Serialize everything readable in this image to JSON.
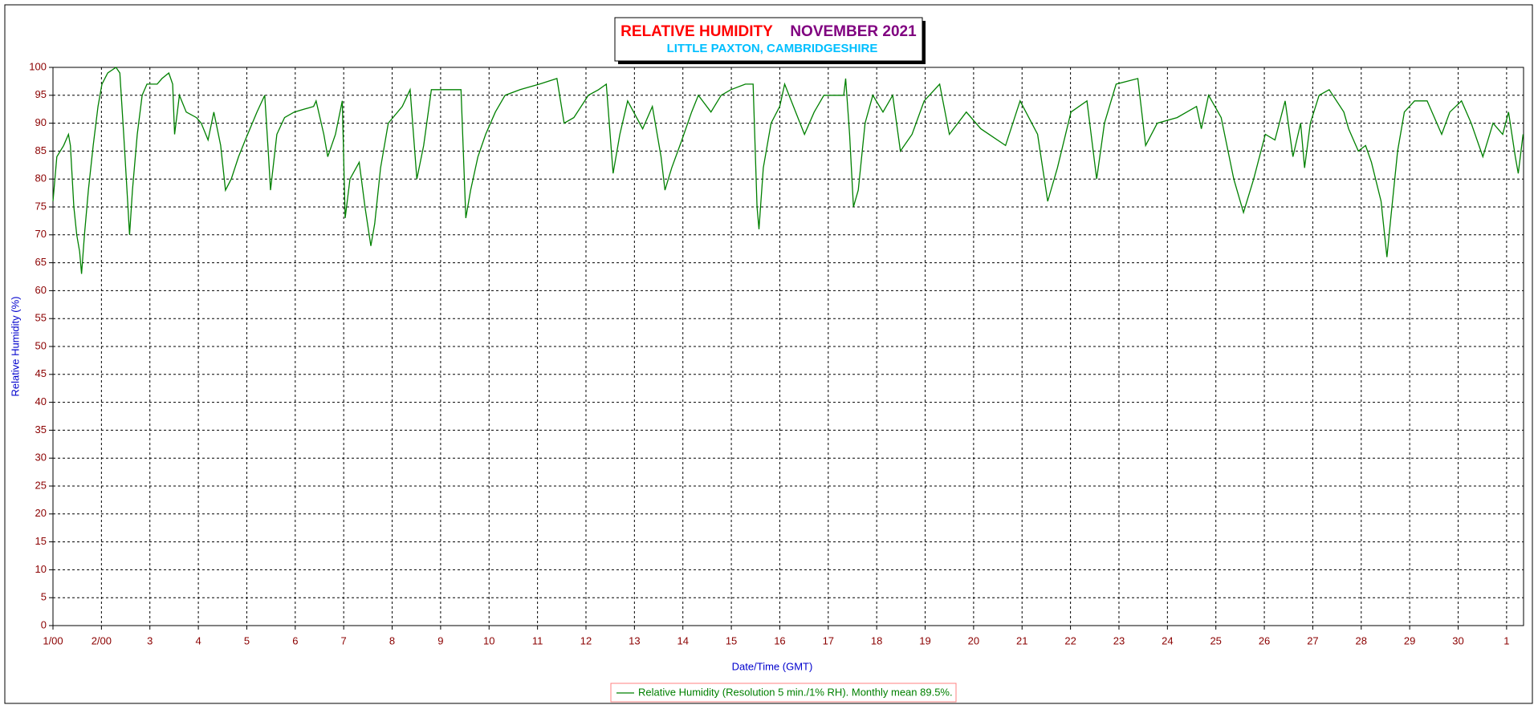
{
  "chart_data": {
    "type": "line",
    "title": "RELATIVE HUMIDITY",
    "title_period": "NOVEMBER 2021",
    "subtitle": "LITTLE PAXTON, CAMBRIDGESHIRE",
    "x_label": "Date/Time (GMT)",
    "y_label": "Relative Humidity (%)",
    "grid": true,
    "legend": "bottom",
    "xlim": [
      0,
      30.35
    ],
    "ylim": [
      0,
      100
    ],
    "xticks": [
      {
        "value": 0,
        "label": "1/00"
      },
      {
        "value": 1,
        "label": "2/00"
      },
      {
        "value": 2,
        "label": "3"
      },
      {
        "value": 3,
        "label": "4"
      },
      {
        "value": 4,
        "label": "5"
      },
      {
        "value": 5,
        "label": "6"
      },
      {
        "value": 6,
        "label": "7"
      },
      {
        "value": 7,
        "label": "8"
      },
      {
        "value": 8,
        "label": "9"
      },
      {
        "value": 9,
        "label": "10"
      },
      {
        "value": 10,
        "label": "11"
      },
      {
        "value": 11,
        "label": "12"
      },
      {
        "value": 12,
        "label": "13"
      },
      {
        "value": 13,
        "label": "14"
      },
      {
        "value": 14,
        "label": "15"
      },
      {
        "value": 15,
        "label": "16"
      },
      {
        "value": 16,
        "label": "17"
      },
      {
        "value": 17,
        "label": "18"
      },
      {
        "value": 18,
        "label": "19"
      },
      {
        "value": 19,
        "label": "20"
      },
      {
        "value": 20,
        "label": "21"
      },
      {
        "value": 21,
        "label": "22"
      },
      {
        "value": 22,
        "label": "23"
      },
      {
        "value": 23,
        "label": "24"
      },
      {
        "value": 24,
        "label": "25"
      },
      {
        "value": 25,
        "label": "26"
      },
      {
        "value": 26,
        "label": "27"
      },
      {
        "value": 27,
        "label": "28"
      },
      {
        "value": 28,
        "label": "29"
      },
      {
        "value": 29,
        "label": "30"
      },
      {
        "value": 30,
        "label": "1"
      }
    ],
    "yticks": [
      0,
      5,
      10,
      15,
      20,
      25,
      30,
      35,
      40,
      45,
      50,
      55,
      60,
      65,
      70,
      75,
      80,
      85,
      90,
      95,
      100
    ],
    "x": [
      0,
      0.08,
      0.22,
      0.32,
      0.36,
      0.43,
      0.49,
      0.55,
      0.59,
      0.65,
      0.73,
      0.83,
      0.93,
      1.01,
      1.13,
      1.3,
      1.38,
      1.46,
      1.54,
      1.58,
      1.64,
      1.74,
      1.84,
      1.94,
      2.15,
      2.25,
      2.39,
      2.47,
      2.51,
      2.61,
      2.75,
      2.96,
      3.06,
      3.2,
      3.32,
      3.46,
      3.56,
      3.68,
      3.83,
      3.97,
      4.21,
      4.37,
      4.45,
      4.49,
      4.62,
      4.78,
      4.98,
      5.38,
      5.43,
      5.59,
      5.67,
      5.83,
      5.97,
      6.03,
      6.13,
      6.32,
      6.44,
      6.56,
      6.64,
      6.76,
      6.92,
      7.21,
      7.37,
      7.51,
      7.65,
      7.81,
      8.42,
      8.52,
      8.62,
      8.77,
      8.93,
      9.13,
      9.33,
      9.64,
      10.04,
      10.4,
      10.55,
      10.75,
      11.05,
      11.26,
      11.42,
      11.56,
      11.7,
      11.86,
      12.17,
      12.37,
      12.55,
      12.63,
      12.77,
      12.98,
      13.18,
      13.32,
      13.58,
      13.79,
      13.99,
      14.29,
      14.45,
      14.53,
      14.57,
      14.66,
      14.82,
      15.0,
      15.1,
      15.51,
      15.71,
      15.91,
      16.32,
      16.36,
      16.44,
      16.52,
      16.62,
      16.76,
      16.92,
      17.13,
      17.33,
      17.49,
      17.73,
      17.98,
      18.3,
      18.5,
      18.85,
      19.15,
      19.66,
      19.96,
      20.32,
      20.53,
      20.73,
      21.01,
      21.34,
      21.54,
      21.7,
      21.94,
      22.39,
      22.55,
      22.79,
      23.2,
      23.6,
      23.7,
      23.85,
      24.11,
      24.37,
      24.57,
      24.78,
      25.02,
      25.22,
      25.43,
      25.59,
      25.75,
      25.83,
      25.95,
      26.13,
      26.34,
      26.64,
      26.74,
      26.94,
      27.09,
      27.21,
      27.41,
      27.53,
      27.61,
      27.75,
      27.89,
      28.1,
      28.36,
      28.56,
      28.66,
      28.83,
      29.07,
      29.27,
      29.51,
      29.72,
      29.92,
      30.04,
      30.18,
      30.24,
      30.34
    ],
    "series": [
      {
        "name": "Relative Humidity (Resolution 5 min./1% RH). Monthly mean 89.5%.",
        "color": "#008000",
        "values": [
          76,
          84,
          86,
          88,
          86,
          75,
          70,
          67,
          63,
          70,
          78,
          86,
          93,
          97,
          99,
          100,
          99,
          88,
          76,
          70,
          78,
          88,
          95,
          97,
          97,
          98,
          99,
          97,
          88,
          95,
          92,
          91,
          90,
          87,
          92,
          86,
          78,
          80,
          84,
          87,
          92,
          95,
          84,
          78,
          88,
          91,
          92,
          93,
          94,
          88,
          84,
          88,
          94,
          73,
          80,
          83,
          75,
          68,
          72,
          82,
          90,
          93,
          96,
          80,
          86,
          96,
          96,
          73,
          78,
          84,
          88,
          92,
          95,
          96,
          97,
          98,
          90,
          91,
          95,
          96,
          97,
          81,
          88,
          94,
          89,
          93,
          84,
          78,
          82,
          87,
          92,
          95,
          92,
          95,
          96,
          97,
          97,
          75,
          71,
          82,
          90,
          93,
          97,
          88,
          92,
          95,
          95,
          98,
          88,
          75,
          78,
          90,
          95,
          92,
          95,
          85,
          88,
          94,
          97,
          88,
          92,
          89,
          86,
          94,
          88,
          76,
          82,
          92,
          94,
          80,
          90,
          97,
          98,
          86,
          90,
          91,
          93,
          89,
          95,
          91,
          80,
          74,
          80,
          88,
          87,
          94,
          84,
          90,
          82,
          90,
          95,
          96,
          92,
          89,
          85,
          86,
          83,
          76,
          66,
          73,
          85,
          92,
          94,
          94,
          90,
          88,
          92,
          94,
          90,
          84,
          90,
          88,
          92,
          84,
          81,
          88
        ]
      }
    ]
  }
}
